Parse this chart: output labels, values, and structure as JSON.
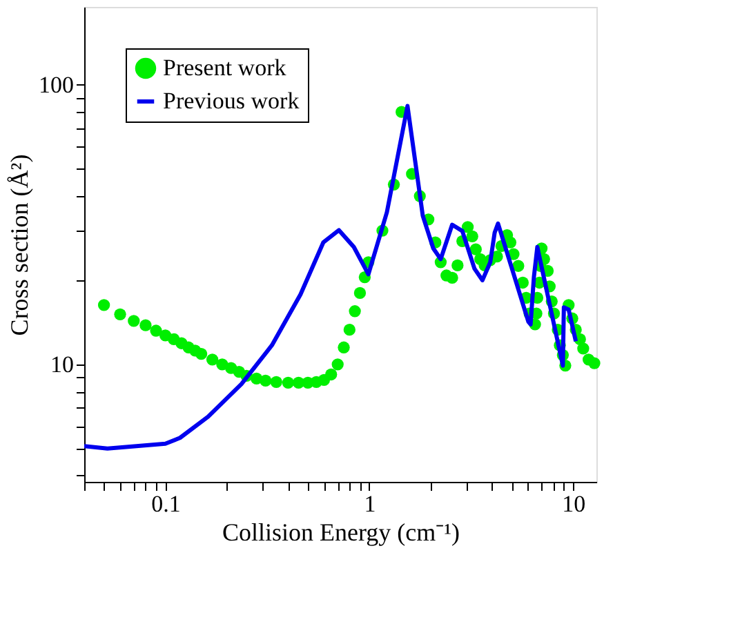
{
  "chart_data": {
    "type": "scatter",
    "xlabel": "Collision Energy (cm⁻¹)",
    "ylabel": "Cross section (Å²)",
    "log": "xy",
    "xlim": [
      0.04,
      13
    ],
    "ylim": [
      3.8,
      190
    ],
    "xticks": [
      {
        "value": 0.04,
        "label": null
      },
      {
        "value": 0.05,
        "label": null
      },
      {
        "value": 0.06,
        "label": null
      },
      {
        "value": 0.07,
        "label": null
      },
      {
        "value": 0.08,
        "label": null
      },
      {
        "value": 0.09,
        "label": null
      },
      0.1,
      {
        "value": 0.2,
        "label": null
      },
      {
        "value": 0.3,
        "label": null
      },
      {
        "value": 0.4,
        "label": null
      },
      {
        "value": 0.5,
        "label": null
      },
      {
        "value": 0.6,
        "label": null
      },
      {
        "value": 0.7,
        "label": null
      },
      {
        "value": 0.8,
        "label": null
      },
      {
        "value": 0.9,
        "label": null
      },
      1,
      {
        "value": 2,
        "label": null
      },
      {
        "value": 3,
        "label": null
      },
      {
        "value": 4,
        "label": null
      },
      {
        "value": 5,
        "label": null
      },
      {
        "value": 6,
        "label": null
      },
      {
        "value": 7,
        "label": null
      },
      {
        "value": 8,
        "label": null
      },
      {
        "value": 9,
        "label": null
      },
      10
    ],
    "yticks": [
      {
        "value": 4,
        "label": null
      },
      {
        "value": 5,
        "label": null
      },
      {
        "value": 6,
        "label": null
      },
      {
        "value": 7,
        "label": null
      },
      {
        "value": 8,
        "label": null
      },
      {
        "value": 9,
        "label": null
      },
      10,
      {
        "value": 20,
        "label": null
      },
      {
        "value": 30,
        "label": null
      },
      {
        "value": 40,
        "label": null
      },
      {
        "value": 50,
        "label": null
      },
      {
        "value": 60,
        "label": null
      },
      {
        "value": 70,
        "label": null
      },
      {
        "value": 80,
        "label": null
      },
      {
        "value": 90,
        "label": null
      },
      100
    ],
    "grid": false,
    "legend": "top left",
    "series": [
      {
        "name": "Present work",
        "marker": "circle",
        "color": "#00ee00",
        "x": [
          0.05,
          0.06,
          0.07,
          0.08,
          0.09,
          0.1,
          0.11,
          0.12,
          0.13,
          0.14,
          0.15,
          0.17,
          0.19,
          0.21,
          0.23,
          0.25,
          0.28,
          0.31,
          0.35,
          0.4,
          0.45,
          0.5,
          0.55,
          0.6,
          0.65,
          0.7,
          0.75,
          0.8,
          0.85,
          0.9,
          0.95,
          0.99,
          1.16,
          1.32,
          1.44,
          1.62,
          1.77,
          1.95,
          2.11,
          2.24,
          2.39,
          2.55,
          2.71,
          2.86,
          3.04,
          3.2,
          3.33,
          3.5,
          3.68,
          3.92,
          4.23,
          4.45,
          4.74,
          4.92,
          5.1,
          5.38,
          5.66,
          5.88,
          6.11,
          6.5,
          6.6,
          6.67,
          6.83,
          6.9,
          7.0,
          7.2,
          7.5,
          7.67,
          7.85,
          8.05,
          8.4,
          8.6,
          8.9,
          9.15,
          9.5,
          9.9,
          10.3,
          10.8,
          11.2,
          11.9,
          12.7
        ],
        "values": [
          16.3,
          15.1,
          14.3,
          13.8,
          13.2,
          12.7,
          12.3,
          11.9,
          11.5,
          11.2,
          10.9,
          10.4,
          10.0,
          9.7,
          9.4,
          9.1,
          8.9,
          8.75,
          8.65,
          8.6,
          8.6,
          8.6,
          8.65,
          8.8,
          9.2,
          10.0,
          11.5,
          13.3,
          15.5,
          18,
          20.5,
          23.2,
          30.1,
          44,
          80,
          48,
          40,
          33,
          27.3,
          23.2,
          20.8,
          20.4,
          22.6,
          27.6,
          31,
          28.7,
          25.8,
          23.8,
          22.6,
          23.6,
          24.3,
          26.5,
          29,
          27.3,
          24.8,
          22.5,
          19.6,
          17.3,
          15.2,
          13.9,
          15.2,
          17.3,
          19.6,
          22.5,
          26,
          23.8,
          21.6,
          19,
          16.8,
          15.2,
          13.3,
          11.7,
          10.8,
          9.9,
          16.3,
          14.6,
          13.3,
          12.3,
          11.4,
          10.4,
          10.1
        ]
      },
      {
        "name": "Previous work",
        "type": "line",
        "color": "#0000ee",
        "x": [
          0.04,
          0.052,
          0.1,
          0.118,
          0.162,
          0.236,
          0.333,
          0.46,
          0.595,
          0.71,
          0.84,
          0.99,
          1.22,
          1.54,
          1.83,
          2.06,
          2.24,
          2.55,
          2.86,
          3.28,
          3.59,
          3.92,
          4.12,
          4.28,
          6.03,
          6.18,
          6.42,
          6.67,
          8.9,
          9.0,
          9.5,
          10.3
        ],
        "values": [
          5.1,
          5.0,
          5.2,
          5.46,
          6.5,
          8.5,
          11.7,
          17.8,
          27.3,
          30.2,
          26.3,
          21,
          35,
          84,
          34,
          26,
          23.8,
          31.6,
          30,
          22,
          20,
          23.2,
          29.6,
          31.9,
          14.2,
          13.9,
          20.6,
          26.3,
          9.9,
          16,
          15.7,
          12.1
        ]
      }
    ]
  }
}
